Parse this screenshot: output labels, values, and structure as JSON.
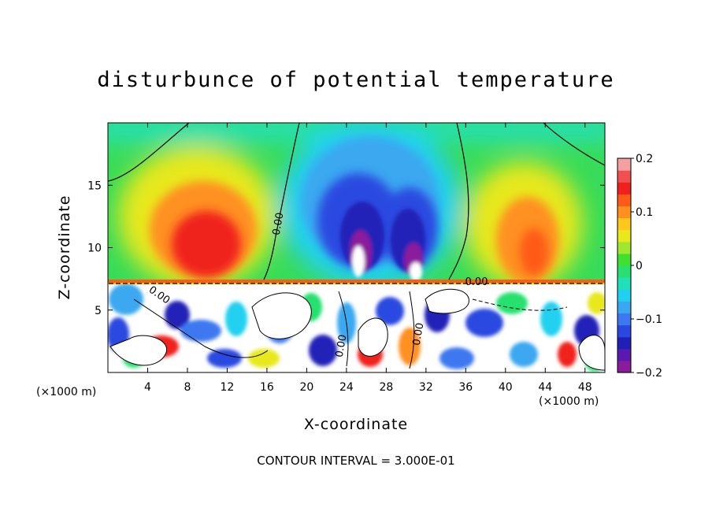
{
  "chart_data": {
    "type": "heatmap",
    "title": "disturbunce of potential temperature",
    "xlabel": "X-coordinate",
    "ylabel": "Z-coordinate",
    "x_unit_left": "(×1000 m)",
    "x_unit_right": "(×1000 m)",
    "xlim": [
      0,
      50
    ],
    "ylim": [
      0,
      20
    ],
    "x_ticks": [
      4,
      8,
      12,
      16,
      20,
      24,
      28,
      32,
      36,
      40,
      44,
      48
    ],
    "x_tick_labels": [
      "4",
      "8",
      "12",
      "16",
      "20",
      "24",
      "28",
      "32",
      "36",
      "40",
      "44",
      "48"
    ],
    "y_ticks": [
      5,
      10,
      15
    ],
    "y_tick_labels": [
      "5",
      "10",
      "15"
    ],
    "colorbar": {
      "range": [
        -0.2,
        0.2
      ],
      "ticks": [
        0.2,
        0.1,
        0,
        -0.1,
        -0.2
      ],
      "tick_labels": [
        "0.2",
        "0.1",
        "0",
        "−0.1",
        "−0.2"
      ],
      "colors": [
        "#8b1a9c",
        "#5a1ab0",
        "#2020b8",
        "#2a48e0",
        "#3c78f0",
        "#3aa8f0",
        "#20d0f0",
        "#20e0b8",
        "#28e070",
        "#40e030",
        "#a0e830",
        "#e8e81a",
        "#ffc81a",
        "#ff9020",
        "#ff5a18",
        "#f0201c",
        "#f05050",
        "#f4a0a0"
      ]
    },
    "contour_labels": [
      "0.00",
      "0.00",
      "0.00",
      "0.00",
      "0.00"
    ],
    "contour_interval_text": "CONTOUR INTERVAL = 3.000E-01",
    "features": [
      {
        "x": 10.5,
        "z": 11.5,
        "value": 0.15
      },
      {
        "x": 43,
        "z": 11,
        "value": 0.13
      },
      {
        "x": 25,
        "z": 12,
        "value": -0.15
      },
      {
        "x": 30,
        "z": 11,
        "value": -0.17
      },
      {
        "x": 26,
        "z": 17,
        "value": -0.06
      }
    ]
  }
}
